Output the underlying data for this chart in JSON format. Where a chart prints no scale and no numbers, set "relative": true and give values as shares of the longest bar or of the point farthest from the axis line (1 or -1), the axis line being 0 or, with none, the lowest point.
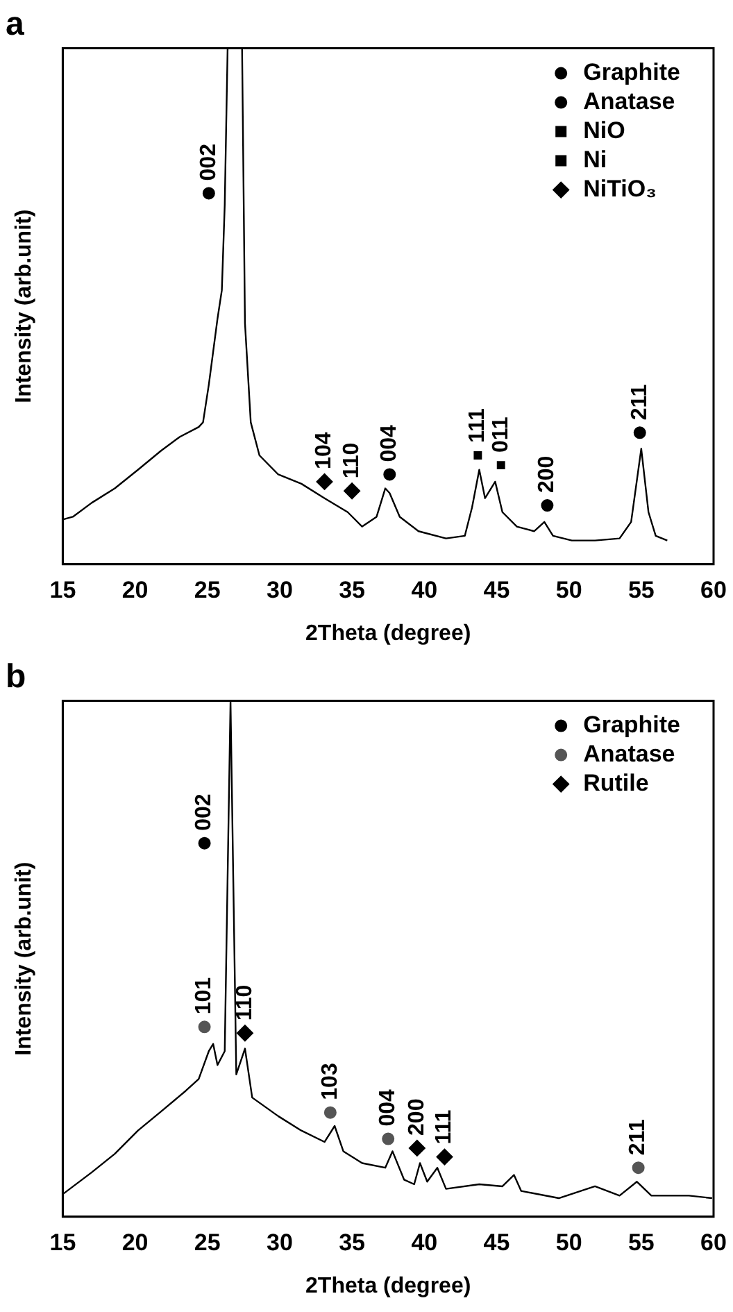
{
  "chart_data": [
    {
      "type": "line",
      "title": "a",
      "xlabel": "2Theta (degree)",
      "ylabel": "Intensity (arb.unit)",
      "xlim": [
        15,
        60
      ],
      "xticks": [
        15,
        20,
        25,
        30,
        35,
        40,
        45,
        50,
        55,
        60
      ],
      "relative": true,
      "legend": "top right",
      "grid": false,
      "series": [
        {
          "color": "#000000",
          "marker": "none",
          "x": [
            15.05,
            15.7,
            17.0,
            18.6,
            20.2,
            21.8,
            23.1,
            24.4,
            24.7,
            25.1,
            25.7,
            26.0,
            26.2,
            26.4,
            27.4,
            27.6,
            28.0,
            28.6,
            29.9,
            31.5,
            33.1,
            34.7,
            35.7,
            36.7,
            37.3,
            37.6,
            38.3,
            39.6,
            41.5,
            42.8,
            43.3,
            43.8,
            44.2,
            44.9,
            45.4,
            46.4,
            47.6,
            48.3,
            48.9,
            50.2,
            51.8,
            53.5,
            54.3,
            55.0,
            55.5,
            56.0,
            56.8
          ],
          "values": [
            0.087,
            0.092,
            0.119,
            0.147,
            0.183,
            0.22,
            0.247,
            0.266,
            0.275,
            0.348,
            0.476,
            0.531,
            0.696,
            1,
            1,
            0.467,
            0.275,
            0.211,
            0.174,
            0.156,
            0.128,
            0.101,
            0.073,
            0.092,
            0.147,
            0.138,
            0.092,
            0.064,
            0.05,
            0.055,
            0.11,
            0.183,
            0.128,
            0.16,
            0.101,
            0.073,
            0.064,
            0.082,
            0.055,
            0.046,
            0.046,
            0.05,
            0.082,
            0.224,
            0.101,
            0.055,
            0.046
          ]
        },
        {
          "type": "scatter",
          "name": "Graphite",
          "color": "#000000",
          "marker": "circle",
          "x": [
            25.1
          ],
          "values": [
            0.719
          ]
        },
        {
          "type": "scatter",
          "name": "Anatase",
          "color": "#000000",
          "marker": "circle",
          "x": [
            37.6,
            48.5,
            54.9
          ],
          "values": [
            0.174,
            0.114,
            0.255
          ]
        },
        {
          "type": "scatter",
          "name": "NiO",
          "color": "#000000",
          "marker": "square",
          "x": [
            43.7
          ],
          "values": [
            0.211
          ]
        },
        {
          "type": "scatter",
          "name": "Ni",
          "color": "#000000",
          "marker": "square",
          "x": [
            45.3
          ],
          "values": [
            0.192
          ]
        },
        {
          "type": "scatter",
          "name": "NiTiO₃",
          "color": "#000000",
          "marker": "diamond",
          "x": [
            33.1,
            35.0
          ],
          "values": [
            0.16,
            0.142
          ]
        }
      ],
      "annotations": [
        {
          "text": "002",
          "x": 25.1,
          "y": 0.719
        },
        {
          "text": "104",
          "x": 33.1,
          "y": 0.16
        },
        {
          "text": "110",
          "x": 35.0,
          "y": 0.142
        },
        {
          "text": "004",
          "x": 37.6,
          "y": 0.174
        },
        {
          "text": "111",
          "x": 43.7,
          "y": 0.211
        },
        {
          "text": "011",
          "x": 45.3,
          "y": 0.192
        },
        {
          "text": "200",
          "x": 48.5,
          "y": 0.114
        },
        {
          "text": "211",
          "x": 54.9,
          "y": 0.255
        }
      ]
    },
    {
      "type": "line",
      "title": "b",
      "xlabel": "2Theta (degree)",
      "ylabel": "Intensity (arb.unit)",
      "xlim": [
        15,
        60
      ],
      "xticks": [
        15,
        20,
        25,
        30,
        35,
        40,
        45,
        50,
        55,
        60
      ],
      "relative": true,
      "legend": "top right",
      "grid": false,
      "series": [
        {
          "color": "#000000",
          "marker": "none",
          "x": [
            15.06,
            17.0,
            18.6,
            20.2,
            21.8,
            23.5,
            24.4,
            25.1,
            25.4,
            25.7,
            26.2,
            26.6,
            27.0,
            27.6,
            28.1,
            29.9,
            31.5,
            33.1,
            33.8,
            34.4,
            35.7,
            37.3,
            37.8,
            38.6,
            39.3,
            39.7,
            40.2,
            40.9,
            41.5,
            43.8,
            45.4,
            46.2,
            46.7,
            49.3,
            51.8,
            53.5,
            54.7,
            55.7,
            58.3,
            59.9
          ],
          "values": [
            0.045,
            0.086,
            0.122,
            0.167,
            0.204,
            0.244,
            0.267,
            0.321,
            0.335,
            0.294,
            0.321,
            1,
            0.276,
            0.326,
            0.231,
            0.195,
            0.167,
            0.145,
            0.176,
            0.127,
            0.104,
            0.095,
            0.127,
            0.072,
            0.063,
            0.104,
            0.068,
            0.095,
            0.054,
            0.063,
            0.059,
            0.081,
            0.05,
            0.036,
            0.059,
            0.041,
            0.068,
            0.041,
            0.041,
            0.036
          ]
        },
        {
          "type": "scatter",
          "name": "Graphite",
          "color": "#000000",
          "marker": "circle",
          "x": [
            24.8
          ],
          "values": [
            0.724
          ]
        },
        {
          "type": "scatter",
          "name": "Anatase",
          "color": "#555555",
          "marker": "circle",
          "x": [
            24.8,
            33.5,
            37.5,
            54.8
          ],
          "values": [
            0.368,
            0.202,
            0.151,
            0.095
          ]
        },
        {
          "type": "scatter",
          "name": "Rutile",
          "color": "#000000",
          "marker": "diamond",
          "x": [
            27.6,
            39.5,
            41.4
          ],
          "values": [
            0.356,
            0.133,
            0.116
          ]
        }
      ],
      "annotations": [
        {
          "text": "002",
          "x": 24.8,
          "y": 0.724
        },
        {
          "text": "101",
          "x": 24.8,
          "y": 0.368
        },
        {
          "text": "110",
          "x": 27.6,
          "y": 0.356
        },
        {
          "text": "103",
          "x": 33.5,
          "y": 0.202
        },
        {
          "text": "004",
          "x": 37.5,
          "y": 0.151
        },
        {
          "text": "200",
          "x": 39.5,
          "y": 0.133
        },
        {
          "text": "111",
          "x": 41.4,
          "y": 0.116
        },
        {
          "text": "211",
          "x": 54.8,
          "y": 0.095
        }
      ]
    }
  ]
}
